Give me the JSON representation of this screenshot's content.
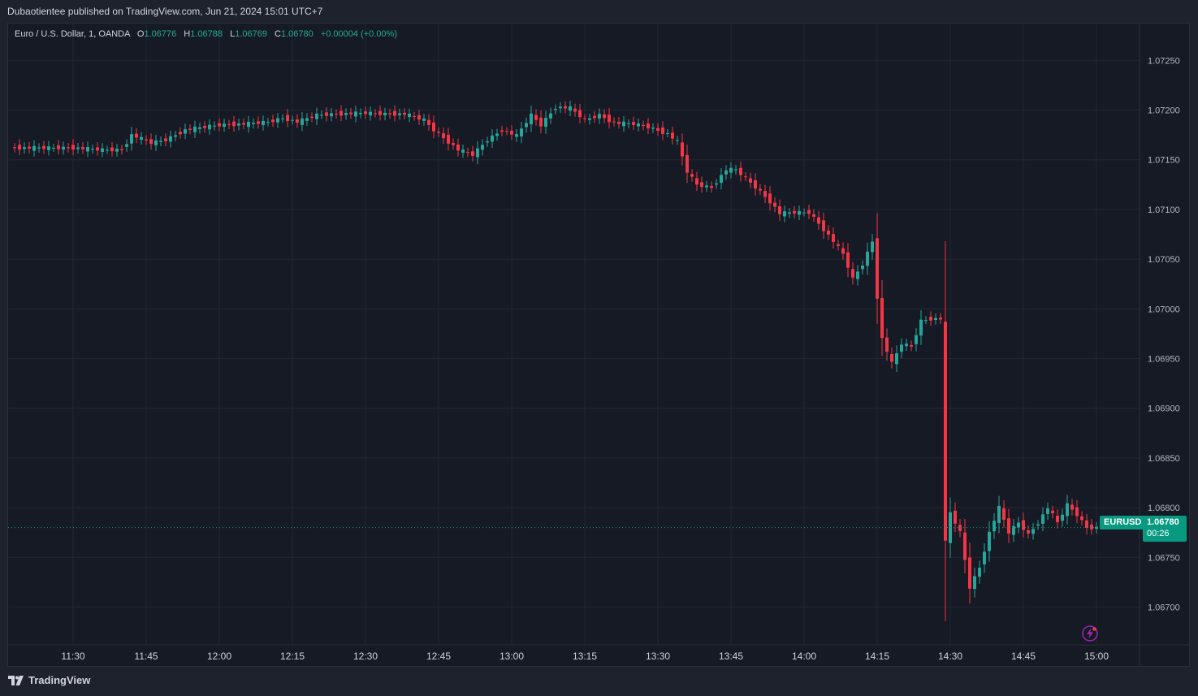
{
  "header": {
    "publisher_text": "Dubaotientee published on TradingView.com, Jun 21, 2024 15:01 UTC+7"
  },
  "legend": {
    "instrument": "Euro / U.S. Dollar, 1, OANDA",
    "open_label": "O",
    "open": "1.06776",
    "high_label": "H",
    "high": "1.06788",
    "low_label": "L",
    "low": "1.06769",
    "close_label": "C",
    "close": "1.06780",
    "change": "+0.00004 (+0.00%)"
  },
  "last_price": {
    "symbol": "EURUSD",
    "price": "1.06780",
    "countdown": "00:26"
  },
  "footer": {
    "brand": "TradingView",
    "logo_icon": "tradingview-logo-icon"
  },
  "colors": {
    "up": "#26a69a",
    "down": "#f23645",
    "background": "#161a25",
    "grid": "#232733",
    "badge": "#089981"
  },
  "chart_data": {
    "type": "candlestick",
    "symbol": "EURUSD",
    "timeframe": "1 minute",
    "x_ticks": [
      "11:30",
      "11:45",
      "12:00",
      "12:15",
      "12:30",
      "12:45",
      "13:00",
      "13:15",
      "13:30",
      "13:45",
      "14:00",
      "14:15",
      "14:30",
      "14:45",
      "15:00"
    ],
    "y_ticks": [
      "1.07250",
      "1.07200",
      "1.07150",
      "1.07100",
      "1.07050",
      "1.07000",
      "1.06950",
      "1.06900",
      "1.06850",
      "1.06800",
      "1.06750",
      "1.06700"
    ],
    "ylim": [
      1.06662,
      1.07287
    ],
    "grid": true,
    "last_value": 1.0678,
    "series_close": [
      [
        "11:17",
        1.07162
      ],
      [
        "11:30",
        1.07162
      ],
      [
        "11:36",
        1.0716
      ],
      [
        "11:40",
        1.0716
      ],
      [
        "11:42",
        1.07175
      ],
      [
        "11:46",
        1.07167
      ],
      [
        "11:49",
        1.0717
      ],
      [
        "11:53",
        1.0718
      ],
      [
        "11:57",
        1.07183
      ],
      [
        "12:00",
        1.07185
      ],
      [
        "12:05",
        1.07186
      ],
      [
        "12:10",
        1.07188
      ],
      [
        "12:13",
        1.07192
      ],
      [
        "12:16",
        1.07188
      ],
      [
        "12:20",
        1.07195
      ],
      [
        "12:24",
        1.07196
      ],
      [
        "12:30",
        1.07197
      ],
      [
        "12:35",
        1.07196
      ],
      [
        "12:38",
        1.07196
      ],
      [
        "12:42",
        1.0719
      ],
      [
        "12:44",
        1.0718
      ],
      [
        "12:47",
        1.07168
      ],
      [
        "12:49",
        1.0716
      ],
      [
        "12:52",
        1.07155
      ],
      [
        "12:55",
        1.0717
      ],
      [
        "12:58",
        1.0718
      ],
      [
        "13:01",
        1.07174
      ],
      [
        "13:04",
        1.07195
      ],
      [
        "13:06",
        1.07185
      ],
      [
        "13:09",
        1.07203
      ],
      [
        "13:12",
        1.07202
      ],
      [
        "13:15",
        1.0719
      ],
      [
        "13:18",
        1.07195
      ],
      [
        "13:21",
        1.07187
      ],
      [
        "13:25",
        1.07186
      ],
      [
        "13:28",
        1.07183
      ],
      [
        "13:32",
        1.07176
      ],
      [
        "13:34",
        1.07168
      ],
      [
        "13:36",
        1.07138
      ],
      [
        "13:38",
        1.07125
      ],
      [
        "13:41",
        1.07122
      ],
      [
        "13:44",
        1.0714
      ],
      [
        "13:46",
        1.0714
      ],
      [
        "13:49",
        1.07127
      ],
      [
        "13:51",
        1.07118
      ],
      [
        "13:53",
        1.07108
      ],
      [
        "13:55",
        1.07096
      ],
      [
        "13:58",
        1.07097
      ],
      [
        "14:01",
        1.07097
      ],
      [
        "14:03",
        1.07086
      ],
      [
        "14:06",
        1.07068
      ],
      [
        "14:08",
        1.07055
      ],
      [
        "14:10",
        1.0703
      ],
      [
        "14:12",
        1.07045
      ],
      [
        "14:14",
        1.07068
      ],
      [
        "14:15",
        1.07012
      ],
      [
        "14:16",
        1.0697
      ],
      [
        "14:18",
        1.06945
      ],
      [
        "14:20",
        1.06965
      ],
      [
        "14:22",
        1.06962
      ],
      [
        "14:24",
        1.06988
      ],
      [
        "14:26",
        1.0699
      ],
      [
        "14:28",
        1.0699
      ],
      [
        "14:29",
        1.06765
      ],
      [
        "14:30",
        1.06795
      ],
      [
        "14:32",
        1.06775
      ],
      [
        "14:34",
        1.0672
      ],
      [
        "14:36",
        1.0674
      ],
      [
        "14:38",
        1.06775
      ],
      [
        "14:40",
        1.068
      ],
      [
        "14:42",
        1.06775
      ],
      [
        "14:44",
        1.06785
      ],
      [
        "14:46",
        1.06773
      ],
      [
        "14:48",
        1.06785
      ],
      [
        "14:50",
        1.068
      ],
      [
        "14:52",
        1.06785
      ],
      [
        "14:54",
        1.06803
      ],
      [
        "14:56",
        1.06793
      ],
      [
        "14:58",
        1.0678
      ],
      [
        "15:00",
        1.0678
      ]
    ]
  }
}
